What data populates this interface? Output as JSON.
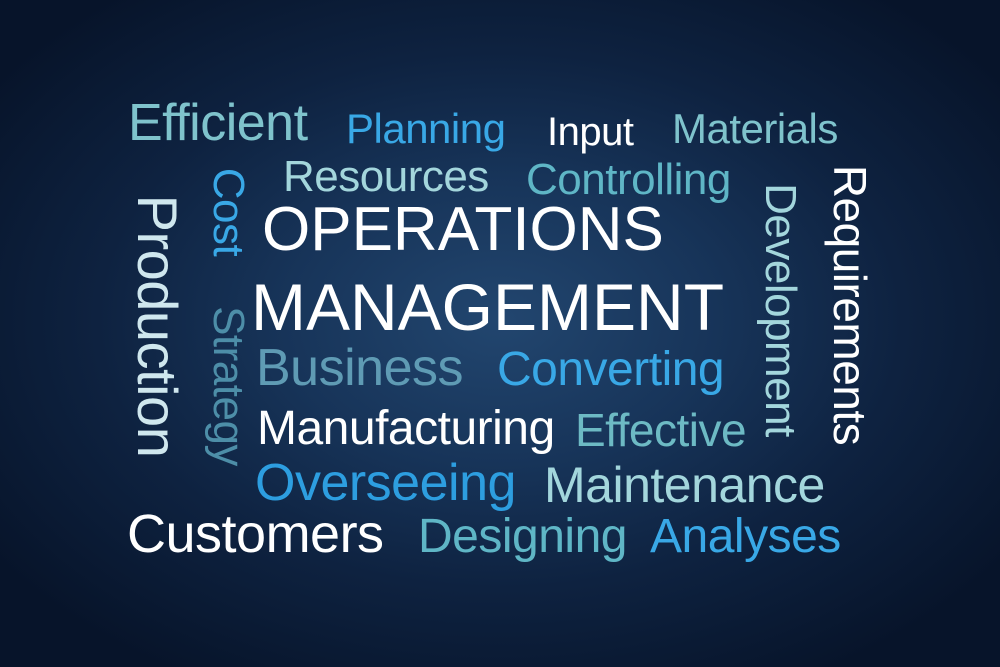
{
  "colors": {
    "white": "#ffffff",
    "pale": "#cfe7ee",
    "teal": "#7fc3cc",
    "light_teal": "#a3d6dc",
    "sky": "#39a8e6",
    "mid_blue": "#5fa8c8"
  },
  "words": {
    "efficient": "Efficient",
    "planning": "Planning",
    "input": "Input",
    "materials": "Materials",
    "resources": "Resources",
    "controlling": "Controlling",
    "operations": "OPERATIONS",
    "management": "MANAGEMENT",
    "business": "Business",
    "converting": "Converting",
    "manufacturing": "Manufacturing",
    "effective": "Effective",
    "overseeing": "Overseeing",
    "maintenance": "Maintenance",
    "customers": "Customers",
    "designing": "Designing",
    "analyses": "Analyses",
    "production": "Production",
    "cost": "Cost",
    "strategy": "Strategy",
    "development": "Development",
    "requirements": "Requirements"
  }
}
